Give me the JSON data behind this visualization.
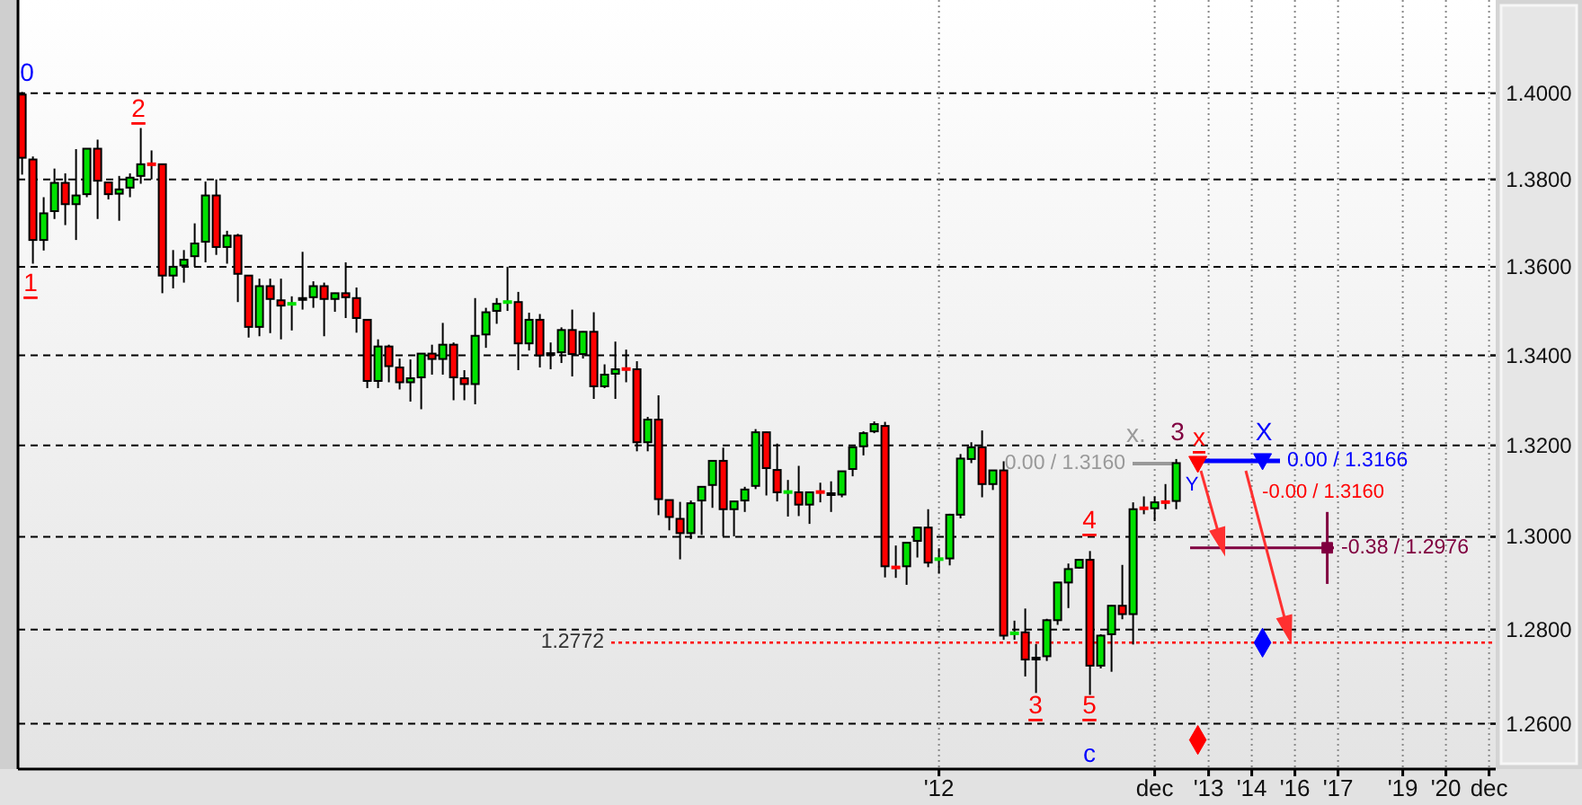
{
  "chart_data": {
    "type": "candlestick",
    "categories": [
      null,
      null,
      null,
      null,
      null,
      null,
      null,
      null,
      null,
      null,
      null,
      null,
      null,
      null,
      null,
      null,
      null,
      null,
      null,
      null,
      null,
      null,
      null,
      null,
      null,
      null,
      null,
      null,
      null,
      null,
      null,
      null,
      null,
      null,
      null,
      null,
      null,
      null,
      null,
      null,
      null,
      null,
      null,
      null,
      null,
      null,
      null,
      null,
      null,
      null,
      null,
      null,
      null,
      null,
      null,
      null,
      null,
      null,
      null,
      null,
      null,
      null,
      null,
      null,
      null,
      null,
      null,
      null,
      null,
      null,
      null,
      null,
      null,
      null,
      null,
      null,
      null,
      null,
      null,
      null,
      null,
      null,
      null,
      null,
      null,
      "'12",
      null,
      null,
      null,
      null,
      null,
      null,
      null,
      null,
      null,
      null,
      null,
      null,
      null,
      null,
      null,
      null,
      null,
      null,
      null,
      "dec",
      null,
      null,
      null,
      null,
      "'13",
      null,
      null,
      null,
      "'14",
      null,
      null,
      null,
      "'16",
      null,
      null,
      null,
      "'17",
      null,
      null,
      null,
      null,
      null,
      "'19",
      null,
      null,
      null,
      "'20",
      null,
      null,
      null,
      "dec"
    ],
    "ohlc": [
      [
        1.3997,
        1.4003,
        1.3811,
        1.385
      ],
      [
        1.3846,
        1.3853,
        1.3607,
        1.3661
      ],
      [
        1.3661,
        1.3759,
        1.3637,
        1.3722
      ],
      [
        1.3727,
        1.3825,
        1.3709,
        1.3792
      ],
      [
        1.3792,
        1.3814,
        1.3695,
        1.3743
      ],
      [
        1.3743,
        1.387,
        1.3661,
        1.3763
      ],
      [
        1.3766,
        1.3872,
        1.3759,
        1.3871
      ],
      [
        1.3871,
        1.3892,
        1.3709,
        1.3797
      ],
      [
        1.3793,
        1.3794,
        1.3754,
        1.3766
      ],
      [
        1.3767,
        1.3808,
        1.3705,
        1.3777
      ],
      [
        1.3781,
        1.3814,
        1.3759,
        1.3804
      ],
      [
        1.3808,
        1.3919,
        1.379,
        1.3835
      ],
      [
        1.3836,
        1.3867,
        1.38,
        1.3834
      ],
      [
        1.3835,
        1.3836,
        1.354,
        1.358
      ],
      [
        1.358,
        1.3638,
        1.3551,
        1.36
      ],
      [
        1.3603,
        1.3638,
        1.3564,
        1.3616
      ],
      [
        1.3624,
        1.3699,
        1.36,
        1.3653
      ],
      [
        1.3657,
        1.3795,
        1.361,
        1.3763
      ],
      [
        1.3763,
        1.38,
        1.3627,
        1.3645
      ],
      [
        1.3645,
        1.3682,
        1.3607,
        1.3671
      ],
      [
        1.3671,
        1.3675,
        1.352,
        1.3584
      ],
      [
        1.358,
        1.3581,
        1.344,
        1.3464
      ],
      [
        1.3464,
        1.3573,
        1.3443,
        1.3556
      ],
      [
        1.3556,
        1.3573,
        1.345,
        1.3527
      ],
      [
        1.3524,
        1.3573,
        1.3436,
        1.3512
      ],
      [
        1.3512,
        1.3533,
        1.3456,
        1.352
      ],
      [
        1.3527,
        1.3634,
        1.3503,
        1.3527
      ],
      [
        1.3531,
        1.3567,
        1.3507,
        1.3556
      ],
      [
        1.3556,
        1.3564,
        1.3443,
        1.3527
      ],
      [
        1.3527,
        1.3541,
        1.3498,
        1.354
      ],
      [
        1.354,
        1.361,
        1.3484,
        1.3531
      ],
      [
        1.3529,
        1.3553,
        1.3451,
        1.3484
      ],
      [
        1.348,
        1.3481,
        1.3327,
        1.3343
      ],
      [
        1.3343,
        1.3436,
        1.3327,
        1.342
      ],
      [
        1.342,
        1.3424,
        1.334,
        1.3376
      ],
      [
        1.3373,
        1.3393,
        1.3324,
        1.334
      ],
      [
        1.334,
        1.3391,
        1.3297,
        1.3349
      ],
      [
        1.3351,
        1.3405,
        1.328,
        1.3404
      ],
      [
        1.3404,
        1.3424,
        1.3357,
        1.3392
      ],
      [
        1.3392,
        1.3473,
        1.3357,
        1.3424
      ],
      [
        1.3424,
        1.3429,
        1.33,
        1.3351
      ],
      [
        1.3349,
        1.3367,
        1.33,
        1.3336
      ],
      [
        1.3336,
        1.3529,
        1.3291,
        1.3444
      ],
      [
        1.3447,
        1.3507,
        1.3417,
        1.3497
      ],
      [
        1.35,
        1.3529,
        1.3471,
        1.3516
      ],
      [
        1.3519,
        1.36,
        1.35,
        1.3521
      ],
      [
        1.352,
        1.3543,
        1.3367,
        1.3427
      ],
      [
        1.3427,
        1.3496,
        1.3411,
        1.348
      ],
      [
        1.348,
        1.3493,
        1.3373,
        1.34
      ],
      [
        1.3403,
        1.3429,
        1.3369,
        1.3403
      ],
      [
        1.3407,
        1.3463,
        1.3383,
        1.3457
      ],
      [
        1.3457,
        1.3503,
        1.3353,
        1.3403
      ],
      [
        1.3403,
        1.3454,
        1.3393,
        1.3453
      ],
      [
        1.3453,
        1.3497,
        1.3303,
        1.3331
      ],
      [
        1.3331,
        1.338,
        1.3327,
        1.3357
      ],
      [
        1.3359,
        1.3431,
        1.3303,
        1.3369
      ],
      [
        1.3372,
        1.3413,
        1.334,
        1.3367
      ],
      [
        1.3369,
        1.3387,
        1.3187,
        1.3207
      ],
      [
        1.3207,
        1.3263,
        1.3187,
        1.3257
      ],
      [
        1.3257,
        1.3311,
        1.3047,
        1.3082
      ],
      [
        1.308,
        1.3081,
        1.3014,
        1.3043
      ],
      [
        1.3039,
        1.3076,
        1.2951,
        1.3008
      ],
      [
        1.3008,
        1.3079,
        1.2995,
        1.3073
      ],
      [
        1.3079,
        1.311,
        1.3004,
        1.3109
      ],
      [
        1.3113,
        1.3167,
        1.3063,
        1.3166
      ],
      [
        1.3166,
        1.3195,
        1.3001,
        1.306
      ],
      [
        1.306,
        1.3078,
        1.3001,
        1.3077
      ],
      [
        1.3079,
        1.3109,
        1.3054,
        1.3103
      ],
      [
        1.3111,
        1.3236,
        1.3104,
        1.3229
      ],
      [
        1.3229,
        1.323,
        1.309,
        1.315
      ],
      [
        1.3146,
        1.3204,
        1.3077,
        1.3097
      ],
      [
        1.3096,
        1.3124,
        1.3044,
        1.3099
      ],
      [
        1.3097,
        1.3155,
        1.3045,
        1.307
      ],
      [
        1.307,
        1.3098,
        1.3028,
        1.3097
      ],
      [
        1.3099,
        1.3118,
        1.3075,
        1.3096
      ],
      [
        1.3093,
        1.3121,
        1.3054,
        1.3093
      ],
      [
        1.3092,
        1.3144,
        1.3086,
        1.3143
      ],
      [
        1.3148,
        1.3197,
        1.3132,
        1.3196
      ],
      [
        1.3198,
        1.3231,
        1.3178,
        1.3227
      ],
      [
        1.3231,
        1.3253,
        1.3227,
        1.3247
      ],
      [
        1.3243,
        1.3252,
        1.2912,
        1.2936
      ],
      [
        1.2935,
        1.2981,
        1.2911,
        1.2932
      ],
      [
        1.2936,
        1.2988,
        1.2896,
        1.2987
      ],
      [
        1.2991,
        1.3021,
        1.2955,
        1.302
      ],
      [
        1.302,
        1.306,
        1.2934,
        1.2944
      ],
      [
        1.295,
        1.2975,
        1.292,
        1.2953
      ],
      [
        1.2953,
        1.305,
        1.2938,
        1.3048
      ],
      [
        1.3048,
        1.3181,
        1.304,
        1.3171
      ],
      [
        1.317,
        1.3207,
        1.3161,
        1.3196
      ],
      [
        1.3196,
        1.3233,
        1.3086,
        1.3115
      ],
      [
        1.3115,
        1.3146,
        1.3102,
        1.3145
      ],
      [
        1.3145,
        1.3165,
        1.2778,
        1.2787
      ],
      [
        1.279,
        1.2819,
        1.2778,
        1.2794
      ],
      [
        1.2794,
        1.2845,
        1.27,
        1.2736
      ],
      [
        1.2738,
        1.2769,
        1.2665,
        1.2738
      ],
      [
        1.2743,
        1.2823,
        1.2733,
        1.282
      ],
      [
        1.282,
        1.2902,
        1.281,
        1.2901
      ],
      [
        1.2901,
        1.2942,
        1.2846,
        1.293
      ],
      [
        1.2933,
        1.2952,
        1.2931,
        1.295
      ],
      [
        1.295,
        1.2969,
        1.2661,
        1.2723
      ],
      [
        1.2723,
        1.279,
        1.2717,
        1.2787
      ],
      [
        1.279,
        1.2852,
        1.271,
        1.2851
      ],
      [
        1.2851,
        1.2939,
        1.2822,
        1.2833
      ],
      [
        1.2833,
        1.3075,
        1.2768,
        1.306
      ],
      [
        1.3065,
        1.3088,
        1.3049,
        1.3059
      ],
      [
        1.3062,
        1.3088,
        1.3034,
        1.3075
      ],
      [
        1.3078,
        1.3115,
        1.306,
        1.3073
      ],
      [
        1.3078,
        1.317,
        1.306,
        1.3161
      ],
      null,
      null,
      null,
      null,
      null,
      null,
      null,
      null,
      null,
      null,
      null,
      null,
      null,
      null,
      null,
      null,
      null,
      null,
      null,
      null,
      null,
      null,
      null,
      null,
      null,
      null,
      null,
      null,
      null
    ],
    "colors": [
      "#ff0000",
      "#ff0000",
      "#00e000",
      "#00e000",
      "#ff0000",
      "#00e000",
      "#00e000",
      "#ff0000",
      "#ff0000",
      "#00e000",
      "#00e000",
      "#00e000",
      "#ff0000",
      "#ff0000",
      "#00e000",
      "#00e000",
      "#00e000",
      "#00e000",
      "#ff0000",
      "#00e000",
      "#ff0000",
      "#ff0000",
      "#00e000",
      "#ff0000",
      "#ff0000",
      "#00e000",
      "#000000",
      "#00e000",
      "#ff0000",
      "#00e000",
      "#ff0000",
      "#ff0000",
      "#ff0000",
      "#00e000",
      "#ff0000",
      "#ff0000",
      "#00e000",
      "#00e000",
      "#ff0000",
      "#00e000",
      "#ff0000",
      "#ff0000",
      "#00e000",
      "#00e000",
      "#00e000",
      "#00e000",
      "#ff0000",
      "#00e000",
      "#ff0000",
      "#000000",
      "#00e000",
      "#ff0000",
      "#00e000",
      "#ff0000",
      "#00e000",
      "#00e000",
      "#ff0000",
      "#ff0000",
      "#00e000",
      "#ff0000",
      "#ff0000",
      "#ff0000",
      "#00e000",
      "#00e000",
      "#00e000",
      "#ff0000",
      "#00e000",
      "#00e000",
      "#00e000",
      "#ff0000",
      "#ff0000",
      "#00e000",
      "#ff0000",
      "#00e000",
      "#ff0000",
      "#000000",
      "#00e000",
      "#00e000",
      "#00e000",
      "#00e000",
      "#ff0000",
      "#ff0000",
      "#00e000",
      "#00e000",
      "#ff0000",
      "#00e000",
      "#00e000",
      "#00e000",
      "#00e000",
      "#ff0000",
      "#00e000",
      "#ff0000",
      "#00e000",
      "#ff0000",
      "#000000",
      "#00e000",
      "#00e000",
      "#00e000",
      "#00e000",
      "#ff0000",
      "#00e000",
      "#00e000",
      "#ff0000",
      "#00e000",
      "#ff0000",
      "#00e000",
      "#ff0000",
      "#00e000",
      null,
      null,
      null,
      null,
      null,
      null,
      null,
      null,
      null,
      null,
      null,
      null,
      null,
      null,
      null,
      null,
      null,
      null,
      null,
      null,
      null,
      null,
      null,
      null,
      null,
      null,
      null,
      null,
      null
    ],
    "series": [
      {
        "type": "scatter",
        "color": "#ff0000",
        "marker": "triangle",
        "values": [
          null,
          null,
          null,
          null,
          null,
          null,
          null,
          null,
          null,
          null,
          null,
          null,
          null,
          null,
          null,
          null,
          null,
          null,
          null,
          null,
          null,
          null,
          null,
          null,
          null,
          null,
          null,
          null,
          null,
          null,
          null,
          null,
          null,
          null,
          null,
          null,
          null,
          null,
          null,
          null,
          null,
          null,
          null,
          null,
          null,
          null,
          null,
          null,
          null,
          null,
          null,
          null,
          null,
          null,
          null,
          null,
          null,
          null,
          null,
          null,
          null,
          null,
          null,
          null,
          null,
          null,
          null,
          null,
          null,
          null,
          null,
          null,
          null,
          null,
          null,
          null,
          null,
          null,
          null,
          null,
          null,
          null,
          null,
          null,
          null,
          null,
          null,
          null,
          null,
          null,
          null,
          null,
          null,
          null,
          null,
          null,
          null,
          null,
          null,
          null,
          null,
          null,
          null,
          null,
          null,
          null,
          null,
          null,
          null,
          1.316,
          null,
          null,
          null,
          null,
          null,
          null,
          null,
          null,
          null,
          null,
          null,
          null,
          null,
          null,
          null,
          null,
          null,
          null,
          null,
          null,
          null,
          null,
          null,
          null,
          null,
          null,
          null
        ]
      },
      {
        "type": "scatter",
        "color": "#0000ff",
        "marker": "triangle",
        "values": [
          null,
          null,
          null,
          null,
          null,
          null,
          null,
          null,
          null,
          null,
          null,
          null,
          null,
          null,
          null,
          null,
          null,
          null,
          null,
          null,
          null,
          null,
          null,
          null,
          null,
          null,
          null,
          null,
          null,
          null,
          null,
          null,
          null,
          null,
          null,
          null,
          null,
          null,
          null,
          null,
          null,
          null,
          null,
          null,
          null,
          null,
          null,
          null,
          null,
          null,
          null,
          null,
          null,
          null,
          null,
          null,
          null,
          null,
          null,
          null,
          null,
          null,
          null,
          null,
          null,
          null,
          null,
          null,
          null,
          null,
          null,
          null,
          null,
          null,
          null,
          null,
          null,
          null,
          null,
          null,
          null,
          null,
          null,
          null,
          null,
          null,
          null,
          null,
          null,
          null,
          null,
          null,
          null,
          null,
          null,
          null,
          null,
          null,
          null,
          null,
          null,
          null,
          null,
          null,
          null,
          null,
          null,
          null,
          null,
          null,
          null,
          null,
          null,
          null,
          null,
          1.3166,
          null,
          null,
          null,
          null,
          null,
          null,
          null,
          null,
          null,
          null,
          null,
          null,
          null,
          null,
          null,
          null,
          null,
          null,
          null,
          null,
          null
        ]
      },
      {
        "type": "scatter",
        "color": "#ff0000",
        "marker": "diamond",
        "values": [
          null,
          null,
          null,
          null,
          null,
          null,
          null,
          null,
          null,
          null,
          null,
          null,
          null,
          null,
          null,
          null,
          null,
          null,
          null,
          null,
          null,
          null,
          null,
          null,
          null,
          null,
          null,
          null,
          null,
          null,
          null,
          null,
          null,
          null,
          null,
          null,
          null,
          null,
          null,
          null,
          null,
          null,
          null,
          null,
          null,
          null,
          null,
          null,
          null,
          null,
          null,
          null,
          null,
          null,
          null,
          null,
          null,
          null,
          null,
          null,
          null,
          null,
          null,
          null,
          null,
          null,
          null,
          null,
          null,
          null,
          null,
          null,
          null,
          null,
          null,
          null,
          null,
          null,
          null,
          null,
          null,
          null,
          null,
          null,
          null,
          null,
          null,
          null,
          null,
          null,
          null,
          null,
          null,
          null,
          null,
          null,
          null,
          null,
          null,
          null,
          null,
          null,
          null,
          null,
          null,
          null,
          null,
          null,
          null,
          1.2566,
          null,
          null,
          null,
          null,
          null,
          null,
          null,
          null,
          null,
          null,
          null,
          null,
          null,
          null,
          null,
          null,
          null,
          null,
          null,
          null,
          null,
          null,
          null,
          null,
          null,
          null,
          null
        ]
      },
      {
        "type": "scatter",
        "color": "#0000ff",
        "marker": "diamond",
        "values": [
          null,
          null,
          null,
          null,
          null,
          null,
          null,
          null,
          null,
          null,
          null,
          null,
          null,
          null,
          null,
          null,
          null,
          null,
          null,
          null,
          null,
          null,
          null,
          null,
          null,
          null,
          null,
          null,
          null,
          null,
          null,
          null,
          null,
          null,
          null,
          null,
          null,
          null,
          null,
          null,
          null,
          null,
          null,
          null,
          null,
          null,
          null,
          null,
          null,
          null,
          null,
          null,
          null,
          null,
          null,
          null,
          null,
          null,
          null,
          null,
          null,
          null,
          null,
          null,
          null,
          null,
          null,
          null,
          null,
          null,
          null,
          null,
          null,
          null,
          null,
          null,
          null,
          null,
          null,
          null,
          null,
          null,
          null,
          null,
          null,
          null,
          null,
          null,
          null,
          null,
          null,
          null,
          null,
          null,
          null,
          null,
          null,
          null,
          null,
          null,
          null,
          null,
          null,
          null,
          null,
          null,
          null,
          null,
          null,
          null,
          null,
          null,
          null,
          null,
          null,
          1.2772,
          null,
          null,
          null,
          null,
          null,
          null,
          null,
          null,
          null,
          null,
          null,
          null,
          null,
          null,
          null,
          null,
          null,
          null,
          null,
          null,
          null
        ]
      },
      {
        "type": "scatter",
        "color": "#800040",
        "marker": "square",
        "values": [
          null,
          null,
          null,
          null,
          null,
          null,
          null,
          null,
          null,
          null,
          null,
          null,
          null,
          null,
          null,
          null,
          null,
          null,
          null,
          null,
          null,
          null,
          null,
          null,
          null,
          null,
          null,
          null,
          null,
          null,
          null,
          null,
          null,
          null,
          null,
          null,
          null,
          null,
          null,
          null,
          null,
          null,
          null,
          null,
          null,
          null,
          null,
          null,
          null,
          null,
          null,
          null,
          null,
          null,
          null,
          null,
          null,
          null,
          null,
          null,
          null,
          null,
          null,
          null,
          null,
          null,
          null,
          null,
          null,
          null,
          null,
          null,
          null,
          null,
          null,
          null,
          null,
          null,
          null,
          null,
          null,
          null,
          null,
          null,
          null,
          null,
          null,
          null,
          null,
          null,
          null,
          null,
          null,
          null,
          null,
          null,
          null,
          null,
          null,
          null,
          null,
          null,
          null,
          null,
          null,
          null,
          null,
          null,
          null,
          null,
          null,
          null,
          null,
          null,
          null,
          null,
          null,
          null,
          null,
          null,
          null,
          1.2976,
          null,
          null,
          null,
          null,
          null,
          null,
          null,
          null,
          null,
          null,
          null,
          null,
          null,
          null,
          null
        ],
        "errors": [
          null,
          null,
          null,
          null,
          null,
          null,
          null,
          null,
          null,
          null,
          null,
          null,
          null,
          null,
          null,
          null,
          null,
          null,
          null,
          null,
          null,
          null,
          null,
          null,
          null,
          null,
          null,
          null,
          null,
          null,
          null,
          null,
          null,
          null,
          null,
          null,
          null,
          null,
          null,
          null,
          null,
          null,
          null,
          null,
          null,
          null,
          null,
          null,
          null,
          null,
          null,
          null,
          null,
          null,
          null,
          null,
          null,
          null,
          null,
          null,
          null,
          null,
          null,
          null,
          null,
          null,
          null,
          null,
          null,
          null,
          null,
          null,
          null,
          null,
          null,
          null,
          null,
          null,
          null,
          null,
          null,
          null,
          null,
          null,
          null,
          null,
          null,
          null,
          null,
          null,
          null,
          null,
          null,
          null,
          null,
          null,
          null,
          null,
          null,
          null,
          null,
          null,
          null,
          null,
          null,
          null,
          null,
          null,
          null,
          null,
          null,
          null,
          null,
          null,
          null,
          null,
          null,
          null,
          null,
          null,
          null,
          [
            1.2898,
            1.3054
          ],
          null,
          null,
          null,
          null,
          null,
          null,
          null,
          null,
          null,
          null,
          null,
          null,
          null,
          null,
          null
        ]
      }
    ],
    "ylim": [
      1.2505,
      1.422
    ],
    "log": true,
    "grid": true,
    "yticks": [
      {
        "value": 1.26,
        "label": "1.2600"
      },
      {
        "value": 1.28,
        "label": "1.2800"
      },
      {
        "value": 1.3,
        "label": "1.3000"
      },
      {
        "value": 1.32,
        "label": "1.3200"
      },
      {
        "value": 1.34,
        "label": "1.3400"
      },
      {
        "value": 1.36,
        "label": "1.3600"
      },
      {
        "value": 1.38,
        "label": "1.3800"
      },
      {
        "value": 1.4,
        "label": "1.4000"
      }
    ],
    "ref_lines": [
      {
        "axis": "y",
        "value": 1.2772,
        "label": "1.2772",
        "color": "#ff0000",
        "line_style": "dotted"
      },
      {
        "axis": "y",
        "value": 1.2976,
        "label": "-0.38 / 1.2976",
        "color": "#800040"
      },
      {
        "axis": "y",
        "value": 1.316,
        "label": "0.00 / 1.3160",
        "color": "#999999"
      },
      {
        "axis": "y",
        "value": 1.3166,
        "label": "0.00 / 1.3166",
        "color": "#0000ff"
      }
    ],
    "annotations": [
      "0",
      "1",
      "2",
      "3",
      "4",
      "5",
      "c",
      "x.",
      "3",
      "x",
      "X",
      "Y",
      "-0.00 / 1.3160"
    ]
  }
}
